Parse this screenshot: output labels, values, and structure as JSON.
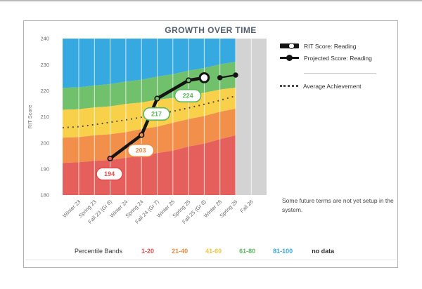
{
  "title": "GROWTH OVER TIME",
  "legend": {
    "rit": "RIT Score: Reading",
    "projected": "Projected Score: Reading",
    "average": "Average Achievement"
  },
  "note": "Some future terms are not yet setup in the system.",
  "percentile_legend": {
    "label": "Percentile Bands",
    "bands": [
      {
        "label": "1-20",
        "color": "#e04f4a"
      },
      {
        "label": "21-40",
        "color": "#ee8a40"
      },
      {
        "label": "41-60",
        "color": "#f2c53d"
      },
      {
        "label": "61-80",
        "color": "#5cb85e"
      },
      {
        "label": "81-100",
        "color": "#35a8e0"
      }
    ],
    "no_data_label": "no data"
  },
  "chart_data": {
    "type": "area",
    "title": "GROWTH OVER TIME",
    "ylabel": "RIT Score",
    "ylim": [
      180,
      240
    ],
    "yticks": [
      180,
      190,
      200,
      210,
      220,
      230,
      240
    ],
    "categories": [
      "Winter 23",
      "Spring 23",
      "Fall 23 (Gr 6)",
      "Winter 24",
      "Spring 24",
      "Fall 24 (Gr 7)",
      "Winter 25",
      "Spring 25",
      "Fall 25 (Gr 8)",
      "Winter 26",
      "Spring 26",
      "Fall 26"
    ],
    "no_data_terms": [
      "Fall 26"
    ],
    "series": [
      {
        "name": "RIT Score: Reading",
        "type": "line",
        "points": [
          {
            "term": "Fall 23 (Gr 6)",
            "value": 194,
            "label": "194",
            "color": "#e04f4a",
            "marker_fill": "#e5605c"
          },
          {
            "term": "Spring 24",
            "value": 203,
            "label": "203",
            "color": "#ee8a40",
            "marker_fill": "#f28f4a"
          },
          {
            "term": "Fall 24 (Gr 7)",
            "value": 217,
            "label": "217",
            "color": "#5cb85e",
            "marker_fill": "#71c06b"
          },
          {
            "term": "Spring 25",
            "value": 224,
            "label": "224",
            "color": "#5cb85e",
            "marker_fill": "#71c06b"
          },
          {
            "term": "Fall 25 (Gr 8)",
            "value": 225,
            "endpoint": true
          }
        ]
      },
      {
        "name": "Projected Score: Reading",
        "type": "line",
        "points": [
          {
            "term": "Winter 26",
            "value": 225
          },
          {
            "term": "Spring 26",
            "value": 226
          }
        ]
      },
      {
        "name": "Average Achievement",
        "type": "dotted-line",
        "station_values": [
          205.8,
          206.2,
          207.0,
          207.9,
          208.8,
          209.8,
          210.9,
          212.1,
          213.4,
          214.8,
          216.3,
          218.0
        ]
      }
    ],
    "percentile_band_boundaries": {
      "p20": [
        192.3,
        192.6,
        193.1,
        193.4,
        194.3,
        195.0,
        196.1,
        197.0,
        198.6,
        199.7,
        201.4,
        202.9
      ],
      "p40": [
        202.0,
        202.2,
        202.9,
        203.3,
        204.1,
        205.3,
        206.2,
        207.7,
        209.1,
        210.3,
        211.9,
        213.1
      ],
      "p60": [
        212.7,
        212.9,
        213.6,
        214.0,
        214.9,
        215.5,
        216.5,
        217.2,
        218.4,
        219.2,
        220.4,
        221.2
      ],
      "p80": [
        221.1,
        221.3,
        222.0,
        222.5,
        223.5,
        224.2,
        225.4,
        226.3,
        227.7,
        228.7,
        230.1,
        231.1
      ]
    },
    "band_colors": {
      "1-20": "#e5605c",
      "21-40": "#f28f4a",
      "41-60": "#f8d04a",
      "61-80": "#71c06b",
      "81-100": "#36a9e0",
      "no_data": "#d3d3d3"
    }
  }
}
